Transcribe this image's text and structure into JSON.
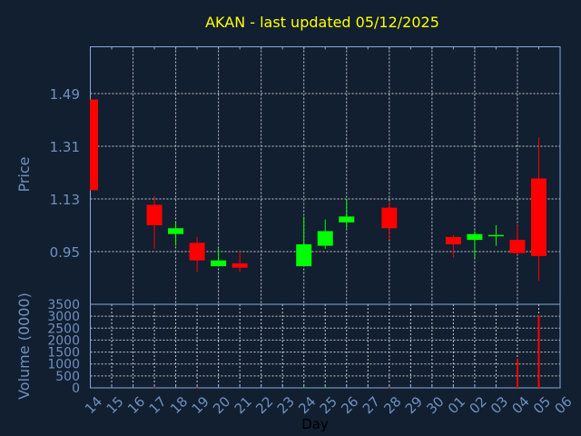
{
  "chart_data": [
    {
      "type": "candlestick",
      "title": "AKAN - last updated 05/12/2025",
      "xlabel": "Day",
      "ylabel": "Price",
      "ylim": [
        0.77,
        1.65
      ],
      "yticks": [
        "0.95",
        "1.13",
        "1.31",
        "1.49"
      ],
      "ytick_values": [
        0.95,
        1.13,
        1.31,
        1.49
      ],
      "grid": true,
      "categories": [
        "14",
        "15",
        "16",
        "17",
        "18",
        "19",
        "20",
        "21",
        "22",
        "23",
        "24",
        "25",
        "26",
        "27",
        "28",
        "29",
        "30",
        "01",
        "02",
        "03",
        "04",
        "05",
        "06"
      ],
      "candles": [
        {
          "day": "14",
          "open": 1.47,
          "high": 1.47,
          "low": 1.16,
          "close": 1.16
        },
        {
          "day": "17",
          "open": 1.11,
          "high": 1.14,
          "low": 0.96,
          "close": 1.04
        },
        {
          "day": "18",
          "open": 1.01,
          "high": 1.05,
          "low": 0.97,
          "close": 1.03
        },
        {
          "day": "19",
          "open": 0.98,
          "high": 1.0,
          "low": 0.88,
          "close": 0.92
        },
        {
          "day": "20",
          "open": 0.9,
          "high": 0.96,
          "low": 0.9,
          "close": 0.92
        },
        {
          "day": "21",
          "open": 0.91,
          "high": 0.95,
          "low": 0.88,
          "close": 0.895
        },
        {
          "day": "24",
          "open": 0.9,
          "high": 1.07,
          "low": 0.9,
          "close": 0.975
        },
        {
          "day": "25",
          "open": 0.97,
          "high": 1.06,
          "low": 0.96,
          "close": 1.02
        },
        {
          "day": "26",
          "open": 1.05,
          "high": 1.13,
          "low": 1.03,
          "close": 1.07
        },
        {
          "day": "28",
          "open": 1.1,
          "high": 1.12,
          "low": 0.99,
          "close": 1.03
        },
        {
          "day": "01",
          "open": 1.0,
          "high": 1.005,
          "low": 0.93,
          "close": 0.975
        },
        {
          "day": "02",
          "open": 0.99,
          "high": 1.02,
          "low": 0.93,
          "close": 1.01
        },
        {
          "day": "03",
          "open": 1.003,
          "high": 1.04,
          "low": 0.97,
          "close": 1.007
        },
        {
          "day": "04",
          "open": 0.99,
          "high": 1.04,
          "low": 0.94,
          "close": 0.945
        },
        {
          "day": "05",
          "open": 1.2,
          "high": 1.34,
          "low": 0.85,
          "close": 0.935
        }
      ],
      "colors": {
        "up": "#00ff00",
        "down": "#ff0000",
        "title": "#ffff00",
        "axis_text": "#7090c0",
        "background": "#111f30"
      }
    },
    {
      "type": "bar",
      "ylabel": "Volume (0000)",
      "ylim": [
        0,
        3500
      ],
      "yticks": [
        "0",
        "500",
        "1000",
        "1500",
        "2000",
        "2500",
        "3000",
        "3500"
      ],
      "ytick_values": [
        0,
        500,
        1000,
        1500,
        2000,
        2500,
        3000,
        3500
      ],
      "grid": true,
      "bars": [
        {
          "day": "17",
          "value": 30,
          "direction": "down"
        },
        {
          "day": "19",
          "value": 10,
          "direction": "down"
        },
        {
          "day": "24",
          "value": 20,
          "direction": "up"
        },
        {
          "day": "25",
          "value": 20,
          "direction": "up"
        },
        {
          "day": "28",
          "value": 10,
          "direction": "down"
        },
        {
          "day": "04",
          "value": 1220,
          "direction": "down"
        },
        {
          "day": "05",
          "value": 3040,
          "direction": "down"
        }
      ]
    }
  ]
}
